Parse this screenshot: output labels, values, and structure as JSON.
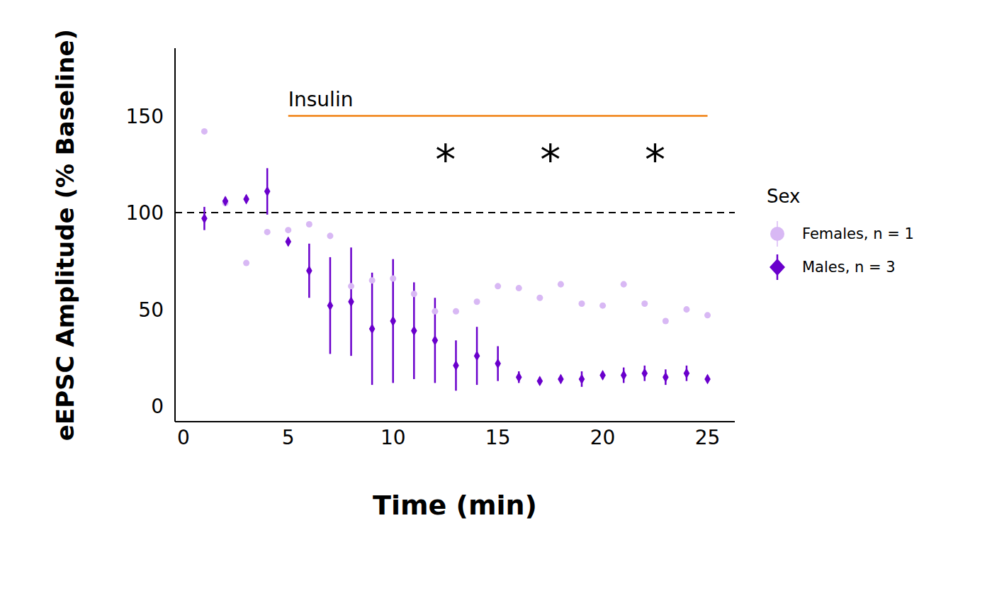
{
  "chart_data": {
    "type": "scatter",
    "xlabel": "Time (min)",
    "ylabel": "eEPSC Amplitude (% Baseline)",
    "xlim": [
      -0.4,
      26.3
    ],
    "ylim": [
      -8,
      185
    ],
    "xticks": [
      0,
      5,
      10,
      15,
      20,
      25
    ],
    "yticks": [
      0,
      50,
      100,
      150
    ],
    "legend_title": "Sex",
    "legend": "right",
    "baseline": {
      "y": 100,
      "line_style": "dashed",
      "color": "#000000"
    },
    "series": [
      {
        "name": "Females, n = 1",
        "color": "#d8b8f4",
        "marker": "circle",
        "x": [
          1,
          2,
          3,
          4,
          5,
          6,
          7,
          8,
          9,
          10,
          11,
          12,
          13,
          14,
          15,
          16,
          17,
          18,
          19,
          20,
          21,
          22,
          23,
          24,
          25
        ],
        "values": [
          142,
          105,
          74,
          90,
          91,
          94,
          88,
          62,
          65,
          66,
          58,
          49,
          49,
          54,
          62,
          61,
          56,
          63,
          53,
          52,
          63,
          53,
          44,
          50,
          47
        ]
      },
      {
        "name": "Males, n = 3",
        "color": "#6a00cc",
        "marker": "diamond",
        "x": [
          1,
          2,
          3,
          4,
          5,
          6,
          7,
          8,
          9,
          10,
          11,
          12,
          13,
          14,
          15,
          16,
          17,
          18,
          19,
          20,
          21,
          22,
          23,
          24,
          25
        ],
        "values": [
          97,
          106,
          107,
          111,
          85,
          70,
          52,
          54,
          40,
          44,
          39,
          34,
          21,
          26,
          22,
          15,
          13,
          14,
          14,
          16,
          16,
          17,
          15,
          17,
          14
        ],
        "error": [
          6,
          2,
          2,
          12,
          2,
          14,
          25,
          28,
          29,
          32,
          25,
          22,
          13,
          15,
          9,
          3,
          2,
          2,
          4,
          2,
          4,
          4,
          4,
          4,
          2
        ]
      }
    ],
    "annotations": [
      {
        "text": "Insulin",
        "x_start": 5,
        "x_end": 25,
        "y": 150,
        "color": "#f08010"
      },
      {
        "text": "*",
        "x": 12.5,
        "y": 127
      },
      {
        "text": "*",
        "x": 17.5,
        "y": 127
      },
      {
        "text": "*",
        "x": 22.5,
        "y": 127
      }
    ]
  }
}
